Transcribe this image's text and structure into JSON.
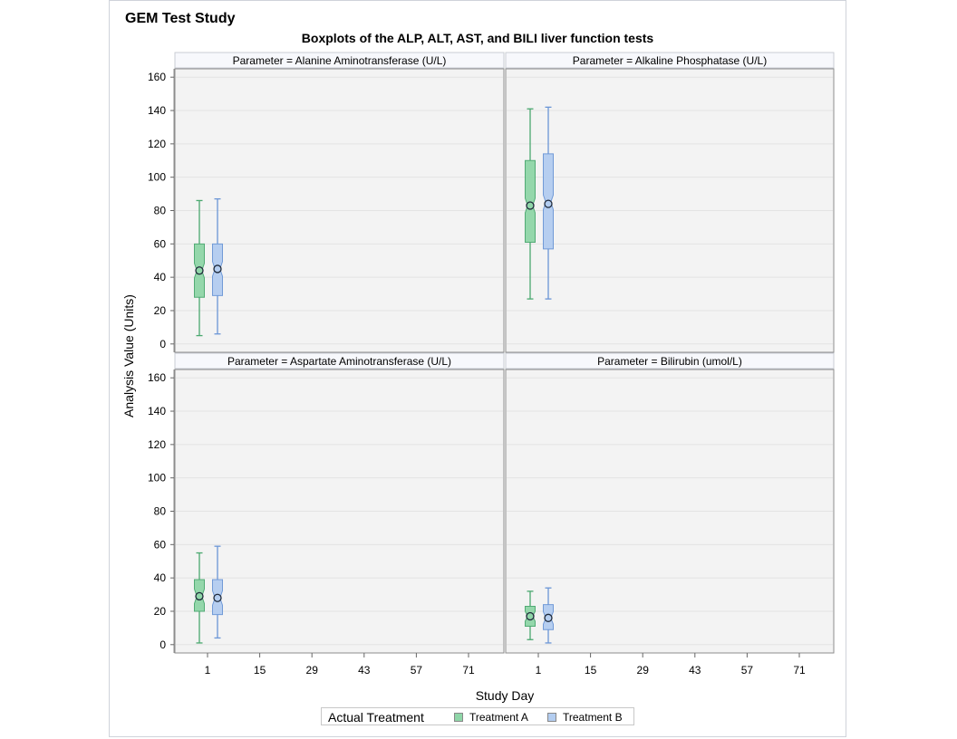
{
  "header": {
    "study_title": "GEM Test Study",
    "plot_title": "Boxplots of the ALP, ALT, AST, and BILI liver function tests"
  },
  "legend": {
    "title": "Actual Treatment",
    "items": [
      {
        "label": "Treatment A",
        "color": "#8fd6a8"
      },
      {
        "label": "Treatment B",
        "color": "#b3cdf0"
      }
    ]
  },
  "colors": {
    "treatment_a_fill": "#8fd6a8",
    "treatment_a_line": "#4aa86f",
    "treatment_b_fill": "#b3cdf0",
    "treatment_b_line": "#6b96d6",
    "panel_background": "#f3f3f3",
    "header_background": "#f7f8fc"
  },
  "chart_data": {
    "type": "boxplot-panel",
    "xlabel": "Study Day",
    "ylabel": "Analysis Value (Units)",
    "xticks": [
      "1",
      "15",
      "29",
      "43",
      "57",
      "71"
    ],
    "yticks": [
      0,
      20,
      40,
      60,
      80,
      100,
      120,
      140,
      160
    ],
    "ylim": [
      -5,
      165
    ],
    "grid": true,
    "legend_position": "bottom",
    "series": [
      "Treatment A",
      "Treatment B"
    ],
    "panels": [
      {
        "label": "Parameter = Alanine Aminotransferase (U/L)",
        "boxes": [
          {
            "series": "Treatment A",
            "day": "1",
            "min": 5,
            "q1": 28,
            "median": 44,
            "q3": 60,
            "max": 86,
            "mean": 44
          },
          {
            "series": "Treatment B",
            "day": "1",
            "min": 6,
            "q1": 29,
            "median": 45,
            "q3": 60,
            "max": 87,
            "mean": 45
          }
        ]
      },
      {
        "label": "Parameter = Alkaline Phosphatase (U/L)",
        "boxes": [
          {
            "series": "Treatment A",
            "day": "1",
            "min": 27,
            "q1": 61,
            "median": 83,
            "q3": 110,
            "max": 141,
            "mean": 83
          },
          {
            "series": "Treatment B",
            "day": "1",
            "min": 27,
            "q1": 57,
            "median": 85,
            "q3": 114,
            "max": 142,
            "mean": 84
          }
        ]
      },
      {
        "label": "Parameter = Aspartate Aminotransferase (U/L)",
        "boxes": [
          {
            "series": "Treatment A",
            "day": "1",
            "min": 1,
            "q1": 20,
            "median": 29,
            "q3": 39,
            "max": 55,
            "mean": 29
          },
          {
            "series": "Treatment B",
            "day": "1",
            "min": 4,
            "q1": 18,
            "median": 28,
            "q3": 39,
            "max": 59,
            "mean": 28
          }
        ]
      },
      {
        "label": "Parameter = Bilirubin (umol/L)",
        "boxes": [
          {
            "series": "Treatment A",
            "day": "1",
            "min": 3,
            "q1": 11,
            "median": 17,
            "q3": 23,
            "max": 32,
            "mean": 17
          },
          {
            "series": "Treatment B",
            "day": "1",
            "min": 1,
            "q1": 9,
            "median": 16,
            "q3": 24,
            "max": 34,
            "mean": 16
          }
        ]
      }
    ]
  }
}
